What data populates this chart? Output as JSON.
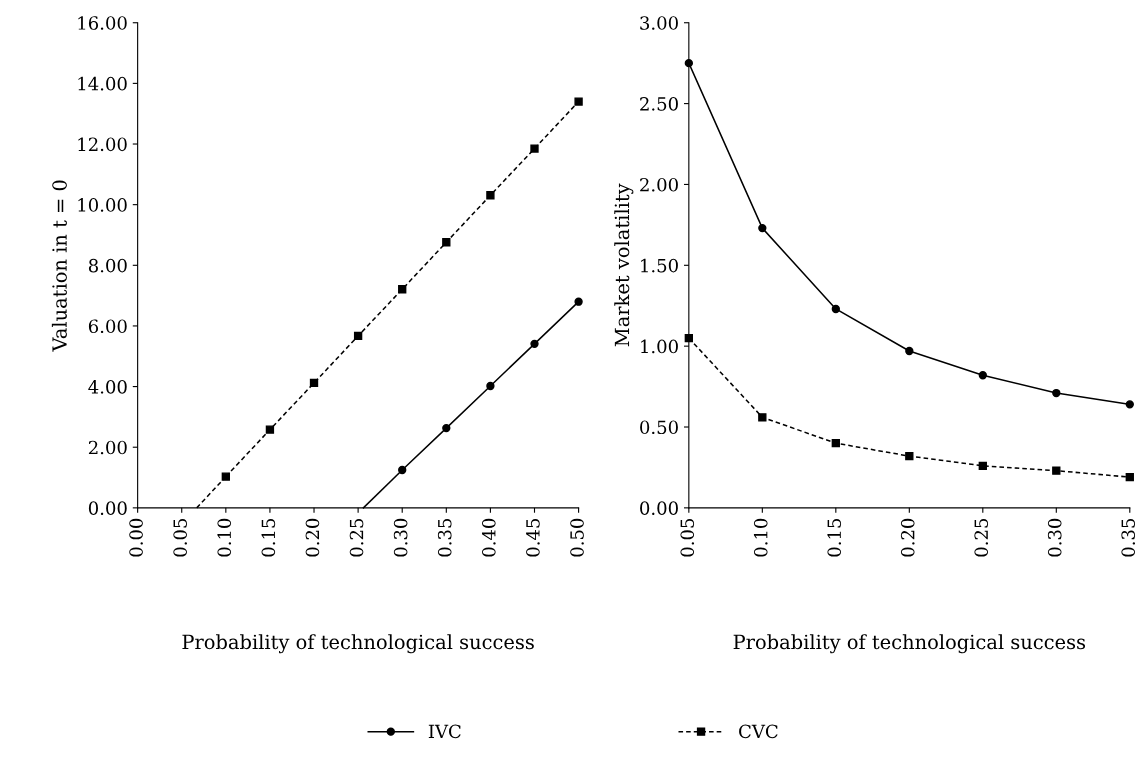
{
  "chart_data": [
    {
      "type": "line",
      "xlabel": "Probability of technological success",
      "ylabel": "Valuation in t = 0",
      "xlim": [
        0,
        0.5
      ],
      "xticks": [
        {
          "value": 0,
          "label": "0.00"
        },
        {
          "value": 0.05,
          "label": "0.05"
        },
        {
          "value": 0.1,
          "label": "0.10"
        },
        {
          "value": 0.15,
          "label": "0.15"
        },
        {
          "value": 0.2,
          "label": "0.20"
        },
        {
          "value": 0.25,
          "label": "0.25"
        },
        {
          "value": 0.3,
          "label": "0.30"
        },
        {
          "value": 0.35,
          "label": "0.35"
        },
        {
          "value": 0.4,
          "label": "0.40"
        },
        {
          "value": 0.45,
          "label": "0.45"
        },
        {
          "value": 0.5,
          "label": "0.50"
        }
      ],
      "ylim": [
        0,
        16
      ],
      "yticks": [
        {
          "value": 0,
          "label": "0.00"
        },
        {
          "value": 2,
          "label": "2.00"
        },
        {
          "value": 4,
          "label": "4.00"
        },
        {
          "value": 6,
          "label": "6.00"
        },
        {
          "value": 8,
          "label": "8.00"
        },
        {
          "value": 10,
          "label": "10.00"
        },
        {
          "value": 12,
          "label": "12.00"
        },
        {
          "value": 14,
          "label": "14.00"
        },
        {
          "value": 16,
          "label": "16.00"
        }
      ],
      "grid": false,
      "legend": "bottom",
      "series": [
        {
          "name": "IVC",
          "color": "#000000",
          "marker": "circle",
          "line_style": "solid",
          "x": [
            0.3,
            0.35,
            0.4,
            0.45,
            0.5
          ],
          "values": [
            1.25,
            2.63,
            4.02,
            5.41,
            6.8
          ]
        },
        {
          "name": "CVC",
          "color": "#000000",
          "marker": "square",
          "line_style": "dashed",
          "x": [
            0.1,
            0.15,
            0.2,
            0.25,
            0.3,
            0.35,
            0.4,
            0.45,
            0.5
          ],
          "values": [
            1.03,
            2.58,
            4.12,
            5.67,
            7.21,
            8.76,
            10.31,
            11.85,
            13.4
          ]
        },
        {
          "type": "line",
          "color": "#000000",
          "marker": "none",
          "line_style": "solid",
          "x": [
            0.256,
            0.3
          ],
          "values": [
            0,
            1.25
          ]
        },
        {
          "type": "line",
          "color": "#000000",
          "marker": "none",
          "line_style": "dashed",
          "x": [
            0.067,
            0.1
          ],
          "values": [
            0,
            1.03
          ]
        }
      ]
    },
    {
      "type": "line",
      "xlabel": "Probability of technological success",
      "ylabel": "Market volatility",
      "xlim": [
        0.05,
        0.35
      ],
      "xticks": [
        {
          "value": 0.05,
          "label": "0.05"
        },
        {
          "value": 0.1,
          "label": "0.10"
        },
        {
          "value": 0.15,
          "label": "0.15"
        },
        {
          "value": 0.2,
          "label": "0.20"
        },
        {
          "value": 0.25,
          "label": "0.25"
        },
        {
          "value": 0.3,
          "label": "0.30"
        },
        {
          "value": 0.35,
          "label": "0.35"
        }
      ],
      "ylim": [
        0,
        3
      ],
      "yticks": [
        {
          "value": 0,
          "label": "0.00"
        },
        {
          "value": 0.5,
          "label": "0.50"
        },
        {
          "value": 1,
          "label": "1.00"
        },
        {
          "value": 1.5,
          "label": "1.50"
        },
        {
          "value": 2,
          "label": "2.00"
        },
        {
          "value": 2.5,
          "label": "2.50"
        },
        {
          "value": 3,
          "label": "3.00"
        }
      ],
      "grid": false,
      "series": [
        {
          "color": "#000000",
          "marker": "circle",
          "line_style": "solid",
          "x": [
            0.05,
            0.1,
            0.15,
            0.2,
            0.25,
            0.3,
            0.35
          ],
          "values": [
            2.75,
            1.73,
            1.23,
            0.97,
            0.82,
            0.71,
            0.64
          ]
        },
        {
          "color": "#000000",
          "marker": "square",
          "line_style": "dashed",
          "x": [
            0.05,
            0.1,
            0.15,
            0.2,
            0.25,
            0.3,
            0.35
          ],
          "values": [
            1.05,
            0.56,
            0.4,
            0.32,
            0.26,
            0.23,
            0.19
          ]
        }
      ]
    }
  ]
}
